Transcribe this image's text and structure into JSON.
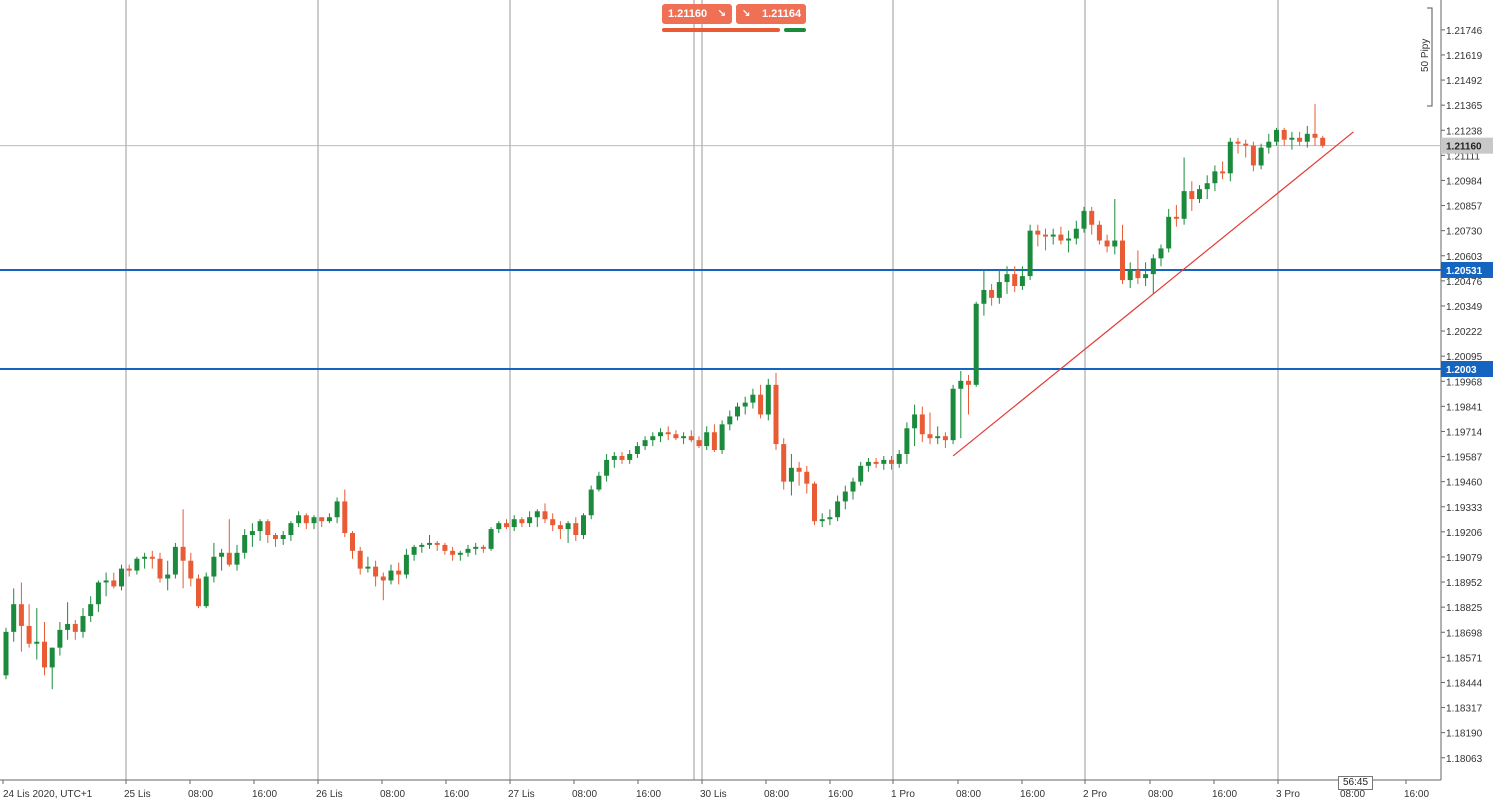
{
  "bid_tag": {
    "price": "1.21160",
    "arrow": "↘",
    "color": "#f07056"
  },
  "ask_tag": {
    "price": "1.21164",
    "arrow": "↘",
    "color": "#f07056"
  },
  "pip_scale_label": "50 Pipy",
  "countdown": "56:45",
  "colors": {
    "bull": "#1b8a3c",
    "bear": "#e85b34",
    "hline": "#1565c0",
    "trend": "#e53935",
    "grid": "#999999",
    "bar_green": "#1b8a3c",
    "bar_red": "#e85b34"
  },
  "chart_data": {
    "type": "candlestick",
    "symbol_timeframe": "H2",
    "ylim": [
      1.1801,
      1.2186
    ],
    "y_ticks": [
      "1.21746",
      "1.21619",
      "1.21492",
      "1.21365",
      "1.21238",
      "1.21111",
      "1.20984",
      "1.20857",
      "1.20730",
      "1.20603",
      "1.20476",
      "1.20349",
      "1.20222",
      "1.20095",
      "1.19968",
      "1.19841",
      "1.19714",
      "1.19587",
      "1.19460",
      "1.19333",
      "1.19206",
      "1.19079",
      "1.18952",
      "1.18825",
      "1.18698",
      "1.18571",
      "1.18444",
      "1.18317",
      "1.18190",
      "1.18063"
    ],
    "x_labels": [
      "24 Lis 2020, UTC+1",
      "25 Lis",
      "08:00",
      "16:00",
      "26 Lis",
      "08:00",
      "16:00",
      "27 Lis",
      "08:00",
      "16:00",
      "30 Lis",
      "08:00",
      "16:00",
      "1 Pro",
      "08:00",
      "16:00",
      "2 Pro",
      "08:00",
      "16:00",
      "3 Pro",
      "08:00",
      "16:00"
    ],
    "current_price": "1.21160",
    "horizontal_lines": [
      {
        "price": "1.20531"
      },
      {
        "price": "1.2003"
      }
    ],
    "trendline": [
      {
        "bar": 123,
        "price": 1.1959
      },
      {
        "bar": 175,
        "price": 1.2123
      }
    ],
    "candles": [
      {
        "o": 1.1848,
        "h": 1.1872,
        "l": 1.1846,
        "c": 1.187
      },
      {
        "o": 1.187,
        "h": 1.1892,
        "l": 1.1865,
        "c": 1.1884
      },
      {
        "o": 1.1884,
        "h": 1.1895,
        "l": 1.186,
        "c": 1.1873
      },
      {
        "o": 1.1873,
        "h": 1.1884,
        "l": 1.1862,
        "c": 1.1864
      },
      {
        "o": 1.1864,
        "h": 1.1882,
        "l": 1.1856,
        "c": 1.1865
      },
      {
        "o": 1.1865,
        "h": 1.1875,
        "l": 1.1848,
        "c": 1.1852
      },
      {
        "o": 1.1852,
        "h": 1.1862,
        "l": 1.1841,
        "c": 1.1862
      },
      {
        "o": 1.1862,
        "h": 1.1875,
        "l": 1.1858,
        "c": 1.1871
      },
      {
        "o": 1.1871,
        "h": 1.1885,
        "l": 1.1866,
        "c": 1.1874
      },
      {
        "o": 1.1874,
        "h": 1.1876,
        "l": 1.1866,
        "c": 1.187
      },
      {
        "o": 1.187,
        "h": 1.1882,
        "l": 1.1867,
        "c": 1.1878
      },
      {
        "o": 1.1878,
        "h": 1.1888,
        "l": 1.1875,
        "c": 1.1884
      },
      {
        "o": 1.1884,
        "h": 1.1896,
        "l": 1.188,
        "c": 1.1895
      },
      {
        "o": 1.1895,
        "h": 1.19,
        "l": 1.1888,
        "c": 1.1896
      },
      {
        "o": 1.1896,
        "h": 1.19,
        "l": 1.1892,
        "c": 1.1893
      },
      {
        "o": 1.1893,
        "h": 1.1904,
        "l": 1.1891,
        "c": 1.1902
      },
      {
        "o": 1.1902,
        "h": 1.1904,
        "l": 1.1898,
        "c": 1.1901
      },
      {
        "o": 1.1901,
        "h": 1.1908,
        "l": 1.1899,
        "c": 1.1907
      },
      {
        "o": 1.1907,
        "h": 1.191,
        "l": 1.1902,
        "c": 1.1908
      },
      {
        "o": 1.1908,
        "h": 1.1911,
        "l": 1.1902,
        "c": 1.1907
      },
      {
        "o": 1.1907,
        "h": 1.191,
        "l": 1.1895,
        "c": 1.1897
      },
      {
        "o": 1.1897,
        "h": 1.1906,
        "l": 1.1891,
        "c": 1.1899
      },
      {
        "o": 1.1899,
        "h": 1.1915,
        "l": 1.1897,
        "c": 1.1913
      },
      {
        "o": 1.1913,
        "h": 1.1932,
        "l": 1.1892,
        "c": 1.1906
      },
      {
        "o": 1.1906,
        "h": 1.191,
        "l": 1.1893,
        "c": 1.1897
      },
      {
        "o": 1.1897,
        "h": 1.1899,
        "l": 1.1882,
        "c": 1.1883
      },
      {
        "o": 1.1883,
        "h": 1.19,
        "l": 1.1882,
        "c": 1.1898
      },
      {
        "o": 1.1898,
        "h": 1.1915,
        "l": 1.1895,
        "c": 1.1908
      },
      {
        "o": 1.1908,
        "h": 1.1912,
        "l": 1.1901,
        "c": 1.191
      },
      {
        "o": 1.191,
        "h": 1.1927,
        "l": 1.1903,
        "c": 1.1904
      },
      {
        "o": 1.1904,
        "h": 1.1914,
        "l": 1.1901,
        "c": 1.191
      },
      {
        "o": 1.191,
        "h": 1.1922,
        "l": 1.1907,
        "c": 1.1919
      },
      {
        "o": 1.1919,
        "h": 1.1925,
        "l": 1.1913,
        "c": 1.1921
      },
      {
        "o": 1.1921,
        "h": 1.1927,
        "l": 1.1916,
        "c": 1.1926
      },
      {
        "o": 1.1926,
        "h": 1.1927,
        "l": 1.1915,
        "c": 1.1919
      },
      {
        "o": 1.1919,
        "h": 1.192,
        "l": 1.1913,
        "c": 1.1917
      },
      {
        "o": 1.1917,
        "h": 1.1921,
        "l": 1.1914,
        "c": 1.1919
      },
      {
        "o": 1.1919,
        "h": 1.1926,
        "l": 1.1916,
        "c": 1.1925
      },
      {
        "o": 1.1925,
        "h": 1.1931,
        "l": 1.1923,
        "c": 1.1929
      },
      {
        "o": 1.1929,
        "h": 1.193,
        "l": 1.1922,
        "c": 1.1925
      },
      {
        "o": 1.1925,
        "h": 1.1929,
        "l": 1.1922,
        "c": 1.1928
      },
      {
        "o": 1.1928,
        "h": 1.1928,
        "l": 1.1923,
        "c": 1.1926
      },
      {
        "o": 1.1926,
        "h": 1.193,
        "l": 1.1925,
        "c": 1.1928
      },
      {
        "o": 1.1928,
        "h": 1.1938,
        "l": 1.1925,
        "c": 1.1936
      },
      {
        "o": 1.1936,
        "h": 1.1942,
        "l": 1.1918,
        "c": 1.192
      },
      {
        "o": 1.192,
        "h": 1.1921,
        "l": 1.1907,
        "c": 1.1911
      },
      {
        "o": 1.1911,
        "h": 1.1913,
        "l": 1.1899,
        "c": 1.1902
      },
      {
        "o": 1.1902,
        "h": 1.1908,
        "l": 1.19,
        "c": 1.1903
      },
      {
        "o": 1.1903,
        "h": 1.1906,
        "l": 1.1893,
        "c": 1.1898
      },
      {
        "o": 1.1898,
        "h": 1.19,
        "l": 1.1886,
        "c": 1.1896
      },
      {
        "o": 1.1896,
        "h": 1.1904,
        "l": 1.1894,
        "c": 1.1901
      },
      {
        "o": 1.1901,
        "h": 1.1905,
        "l": 1.1894,
        "c": 1.1899
      },
      {
        "o": 1.1899,
        "h": 1.1912,
        "l": 1.1897,
        "c": 1.1909
      },
      {
        "o": 1.1909,
        "h": 1.1914,
        "l": 1.1906,
        "c": 1.1913
      },
      {
        "o": 1.1913,
        "h": 1.1915,
        "l": 1.191,
        "c": 1.1914
      },
      {
        "o": 1.1914,
        "h": 1.1919,
        "l": 1.1912,
        "c": 1.1915
      },
      {
        "o": 1.1915,
        "h": 1.1916,
        "l": 1.1911,
        "c": 1.1914
      },
      {
        "o": 1.1914,
        "h": 1.1915,
        "l": 1.1909,
        "c": 1.1911
      },
      {
        "o": 1.1911,
        "h": 1.1913,
        "l": 1.1906,
        "c": 1.1909
      },
      {
        "o": 1.1909,
        "h": 1.1911,
        "l": 1.1906,
        "c": 1.191
      },
      {
        "o": 1.191,
        "h": 1.1914,
        "l": 1.1908,
        "c": 1.1912
      },
      {
        "o": 1.1912,
        "h": 1.1915,
        "l": 1.1909,
        "c": 1.1913
      },
      {
        "o": 1.1913,
        "h": 1.1914,
        "l": 1.191,
        "c": 1.1912
      },
      {
        "o": 1.1912,
        "h": 1.1923,
        "l": 1.1911,
        "c": 1.1922
      },
      {
        "o": 1.1922,
        "h": 1.1926,
        "l": 1.192,
        "c": 1.1925
      },
      {
        "o": 1.1925,
        "h": 1.1927,
        "l": 1.1922,
        "c": 1.1923
      },
      {
        "o": 1.1923,
        "h": 1.1929,
        "l": 1.1921,
        "c": 1.1927
      },
      {
        "o": 1.1927,
        "h": 1.1928,
        "l": 1.1923,
        "c": 1.1925
      },
      {
        "o": 1.1925,
        "h": 1.1931,
        "l": 1.1923,
        "c": 1.1928
      },
      {
        "o": 1.1928,
        "h": 1.1932,
        "l": 1.1923,
        "c": 1.1931
      },
      {
        "o": 1.1931,
        "h": 1.1935,
        "l": 1.1925,
        "c": 1.1927
      },
      {
        "o": 1.1927,
        "h": 1.193,
        "l": 1.1921,
        "c": 1.1924
      },
      {
        "o": 1.1924,
        "h": 1.1926,
        "l": 1.1917,
        "c": 1.1922
      },
      {
        "o": 1.1922,
        "h": 1.1926,
        "l": 1.1915,
        "c": 1.1925
      },
      {
        "o": 1.1925,
        "h": 1.1928,
        "l": 1.1916,
        "c": 1.1919
      },
      {
        "o": 1.1919,
        "h": 1.193,
        "l": 1.1917,
        "c": 1.1929
      },
      {
        "o": 1.1929,
        "h": 1.1944,
        "l": 1.1927,
        "c": 1.1942
      },
      {
        "o": 1.1942,
        "h": 1.1951,
        "l": 1.1941,
        "c": 1.1949
      },
      {
        "o": 1.1949,
        "h": 1.196,
        "l": 1.1946,
        "c": 1.1957
      },
      {
        "o": 1.1957,
        "h": 1.1961,
        "l": 1.1953,
        "c": 1.1959
      },
      {
        "o": 1.1959,
        "h": 1.1961,
        "l": 1.1955,
        "c": 1.1957
      },
      {
        "o": 1.1957,
        "h": 1.1962,
        "l": 1.1955,
        "c": 1.196
      },
      {
        "o": 1.196,
        "h": 1.1966,
        "l": 1.1958,
        "c": 1.1964
      },
      {
        "o": 1.1964,
        "h": 1.1969,
        "l": 1.1962,
        "c": 1.1967
      },
      {
        "o": 1.1967,
        "h": 1.1971,
        "l": 1.1964,
        "c": 1.1969
      },
      {
        "o": 1.1969,
        "h": 1.1973,
        "l": 1.1966,
        "c": 1.1971
      },
      {
        "o": 1.1971,
        "h": 1.1974,
        "l": 1.1967,
        "c": 1.197
      },
      {
        "o": 1.197,
        "h": 1.1972,
        "l": 1.1967,
        "c": 1.1968
      },
      {
        "o": 1.1968,
        "h": 1.1971,
        "l": 1.1965,
        "c": 1.1969
      },
      {
        "o": 1.1969,
        "h": 1.1972,
        "l": 1.1966,
        "c": 1.1967
      },
      {
        "o": 1.1967,
        "h": 1.1969,
        "l": 1.1963,
        "c": 1.1964
      },
      {
        "o": 1.1964,
        "h": 1.1974,
        "l": 1.1962,
        "c": 1.1971
      },
      {
        "o": 1.1971,
        "h": 1.1975,
        "l": 1.1961,
        "c": 1.1962
      },
      {
        "o": 1.1962,
        "h": 1.1977,
        "l": 1.196,
        "c": 1.1975
      },
      {
        "o": 1.1975,
        "h": 1.1982,
        "l": 1.1972,
        "c": 1.1979
      },
      {
        "o": 1.1979,
        "h": 1.1986,
        "l": 1.1977,
        "c": 1.1984
      },
      {
        "o": 1.1984,
        "h": 1.1989,
        "l": 1.198,
        "c": 1.1986
      },
      {
        "o": 1.1986,
        "h": 1.1993,
        "l": 1.1983,
        "c": 1.199
      },
      {
        "o": 1.199,
        "h": 1.1995,
        "l": 1.1978,
        "c": 1.198
      },
      {
        "o": 1.198,
        "h": 1.1998,
        "l": 1.1977,
        "c": 1.1995
      },
      {
        "o": 1.1995,
        "h": 1.2001,
        "l": 1.1962,
        "c": 1.1965
      },
      {
        "o": 1.1965,
        "h": 1.1968,
        "l": 1.1942,
        "c": 1.1946
      },
      {
        "o": 1.1946,
        "h": 1.196,
        "l": 1.1939,
        "c": 1.1953
      },
      {
        "o": 1.1953,
        "h": 1.1956,
        "l": 1.1944,
        "c": 1.1951
      },
      {
        "o": 1.1951,
        "h": 1.1954,
        "l": 1.194,
        "c": 1.1945
      },
      {
        "o": 1.1945,
        "h": 1.1946,
        "l": 1.1924,
        "c": 1.1926
      },
      {
        "o": 1.1926,
        "h": 1.193,
        "l": 1.1923,
        "c": 1.1927
      },
      {
        "o": 1.1927,
        "h": 1.1932,
        "l": 1.1924,
        "c": 1.1928
      },
      {
        "o": 1.1928,
        "h": 1.1939,
        "l": 1.1926,
        "c": 1.1936
      },
      {
        "o": 1.1936,
        "h": 1.1944,
        "l": 1.1932,
        "c": 1.1941
      },
      {
        "o": 1.1941,
        "h": 1.1948,
        "l": 1.1937,
        "c": 1.1946
      },
      {
        "o": 1.1946,
        "h": 1.1956,
        "l": 1.1944,
        "c": 1.1954
      },
      {
        "o": 1.1954,
        "h": 1.1958,
        "l": 1.1951,
        "c": 1.1956
      },
      {
        "o": 1.1956,
        "h": 1.1958,
        "l": 1.1953,
        "c": 1.1955
      },
      {
        "o": 1.1955,
        "h": 1.1959,
        "l": 1.1952,
        "c": 1.1957
      },
      {
        "o": 1.1957,
        "h": 1.1959,
        "l": 1.1952,
        "c": 1.1955
      },
      {
        "o": 1.1955,
        "h": 1.1962,
        "l": 1.1953,
        "c": 1.196
      },
      {
        "o": 1.196,
        "h": 1.1976,
        "l": 1.1955,
        "c": 1.1973
      },
      {
        "o": 1.1973,
        "h": 1.1985,
        "l": 1.1964,
        "c": 1.198
      },
      {
        "o": 1.198,
        "h": 1.1984,
        "l": 1.1966,
        "c": 1.197
      },
      {
        "o": 1.197,
        "h": 1.1981,
        "l": 1.1965,
        "c": 1.1968
      },
      {
        "o": 1.1968,
        "h": 1.1974,
        "l": 1.1965,
        "c": 1.1969
      },
      {
        "o": 1.1969,
        "h": 1.1971,
        "l": 1.1963,
        "c": 1.1967
      },
      {
        "o": 1.1967,
        "h": 1.1995,
        "l": 1.1965,
        "c": 1.1993
      },
      {
        "o": 1.1993,
        "h": 1.2002,
        "l": 1.1968,
        "c": 1.1997
      },
      {
        "o": 1.1997,
        "h": 1.2,
        "l": 1.198,
        "c": 1.1995
      },
      {
        "o": 1.1995,
        "h": 1.2037,
        "l": 1.1994,
        "c": 1.2036
      },
      {
        "o": 1.2036,
        "h": 1.2053,
        "l": 1.203,
        "c": 1.2043
      },
      {
        "o": 1.2043,
        "h": 1.2046,
        "l": 1.2035,
        "c": 1.2039
      },
      {
        "o": 1.2039,
        "h": 1.2053,
        "l": 1.2036,
        "c": 1.2047
      },
      {
        "o": 1.2047,
        "h": 1.2055,
        "l": 1.2041,
        "c": 1.2051
      },
      {
        "o": 1.2051,
        "h": 1.2055,
        "l": 1.2042,
        "c": 1.2045
      },
      {
        "o": 1.2045,
        "h": 1.2055,
        "l": 1.2043,
        "c": 1.205
      },
      {
        "o": 1.205,
        "h": 1.2076,
        "l": 1.2048,
        "c": 1.2073
      },
      {
        "o": 1.2073,
        "h": 1.2076,
        "l": 1.2065,
        "c": 1.2071
      },
      {
        "o": 1.2071,
        "h": 1.2074,
        "l": 1.2063,
        "c": 1.207
      },
      {
        "o": 1.207,
        "h": 1.2074,
        "l": 1.2066,
        "c": 1.2071
      },
      {
        "o": 1.2071,
        "h": 1.2075,
        "l": 1.2066,
        "c": 1.2068
      },
      {
        "o": 1.2068,
        "h": 1.2073,
        "l": 1.2062,
        "c": 1.2069
      },
      {
        "o": 1.2069,
        "h": 1.2078,
        "l": 1.2066,
        "c": 1.2074
      },
      {
        "o": 1.2074,
        "h": 1.2085,
        "l": 1.2072,
        "c": 1.2083
      },
      {
        "o": 1.2083,
        "h": 1.2085,
        "l": 1.2071,
        "c": 1.2076
      },
      {
        "o": 1.2076,
        "h": 1.2078,
        "l": 1.2066,
        "c": 1.2068
      },
      {
        "o": 1.2068,
        "h": 1.2071,
        "l": 1.2062,
        "c": 1.2065
      },
      {
        "o": 1.2065,
        "h": 1.2089,
        "l": 1.2061,
        "c": 1.2068
      },
      {
        "o": 1.2068,
        "h": 1.2076,
        "l": 1.2046,
        "c": 1.2048
      },
      {
        "o": 1.2048,
        "h": 1.2057,
        "l": 1.2044,
        "c": 1.2053
      },
      {
        "o": 1.2053,
        "h": 1.2063,
        "l": 1.2046,
        "c": 1.2049
      },
      {
        "o": 1.2049,
        "h": 1.2057,
        "l": 1.2045,
        "c": 1.2051
      },
      {
        "o": 1.2051,
        "h": 1.2061,
        "l": 1.2041,
        "c": 1.2059
      },
      {
        "o": 1.2059,
        "h": 1.2066,
        "l": 1.2055,
        "c": 1.2064
      },
      {
        "o": 1.2064,
        "h": 1.2084,
        "l": 1.2062,
        "c": 1.208
      },
      {
        "o": 1.208,
        "h": 1.2086,
        "l": 1.2075,
        "c": 1.2079
      },
      {
        "o": 1.2079,
        "h": 1.211,
        "l": 1.2076,
        "c": 1.2093
      },
      {
        "o": 1.2093,
        "h": 1.2098,
        "l": 1.2083,
        "c": 1.2089
      },
      {
        "o": 1.2089,
        "h": 1.2096,
        "l": 1.2087,
        "c": 1.2094
      },
      {
        "o": 1.2094,
        "h": 1.2101,
        "l": 1.2089,
        "c": 1.2097
      },
      {
        "o": 1.2097,
        "h": 1.2106,
        "l": 1.2093,
        "c": 1.2103
      },
      {
        "o": 1.2103,
        "h": 1.2108,
        "l": 1.2099,
        "c": 1.2102
      },
      {
        "o": 1.2102,
        "h": 1.212,
        "l": 1.2098,
        "c": 1.2118
      },
      {
        "o": 1.2118,
        "h": 1.212,
        "l": 1.2112,
        "c": 1.2117
      },
      {
        "o": 1.2117,
        "h": 1.2119,
        "l": 1.211,
        "c": 1.2116
      },
      {
        "o": 1.2116,
        "h": 1.2118,
        "l": 1.2103,
        "c": 1.2106
      },
      {
        "o": 1.2106,
        "h": 1.2117,
        "l": 1.2104,
        "c": 1.2115
      },
      {
        "o": 1.2115,
        "h": 1.2122,
        "l": 1.2112,
        "c": 1.2118
      },
      {
        "o": 1.2118,
        "h": 1.2125,
        "l": 1.2116,
        "c": 1.2124
      },
      {
        "o": 1.2124,
        "h": 1.2125,
        "l": 1.2116,
        "c": 1.2119
      },
      {
        "o": 1.2119,
        "h": 1.2123,
        "l": 1.2114,
        "c": 1.212
      },
      {
        "o": 1.212,
        "h": 1.2123,
        "l": 1.2116,
        "c": 1.2118
      },
      {
        "o": 1.2118,
        "h": 1.2126,
        "l": 1.2115,
        "c": 1.2122
      },
      {
        "o": 1.2122,
        "h": 1.2137,
        "l": 1.2116,
        "c": 1.212
      },
      {
        "o": 1.212,
        "h": 1.2121,
        "l": 1.2115,
        "c": 1.2116
      }
    ]
  }
}
